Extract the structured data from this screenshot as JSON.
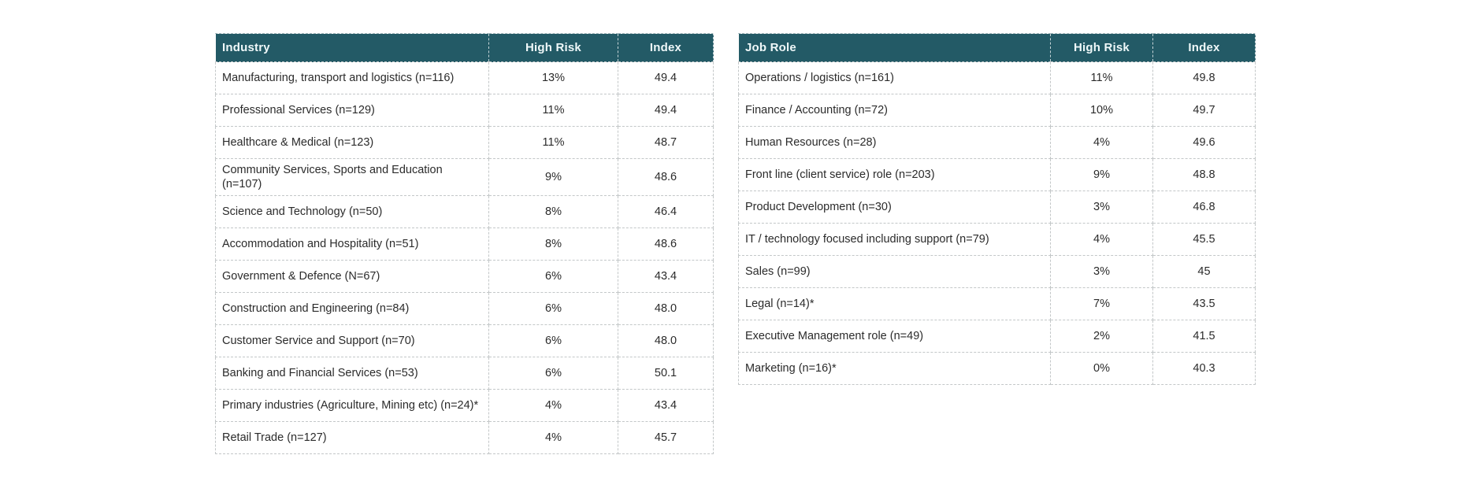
{
  "colors": {
    "header_bg": "#235A66",
    "header_text": "#EFF8F9",
    "border": "#c3c7c8",
    "body_text": "#2b2b2b",
    "page_bg": "#ffffff"
  },
  "chart_data": [
    {
      "type": "table",
      "title": "",
      "columns": [
        "Industry",
        "High Risk",
        "Index"
      ],
      "rows": [
        [
          "Manufacturing, transport and logistics (n=116)",
          "13%",
          "49.4"
        ],
        [
          "Professional Services (n=129)",
          "11%",
          "49.4"
        ],
        [
          "Healthcare & Medical (n=123)",
          "11%",
          "48.7"
        ],
        [
          "Community Services, Sports and Education (n=107)",
          "9%",
          "48.6"
        ],
        [
          "Science and Technology (n=50)",
          "8%",
          "46.4"
        ],
        [
          "Accommodation and Hospitality (n=51)",
          "8%",
          "48.6"
        ],
        [
          "Government & Defence (N=67)",
          "6%",
          "43.4"
        ],
        [
          "Construction and Engineering (n=84)",
          "6%",
          "48.0"
        ],
        [
          "Customer Service and Support (n=70)",
          "6%",
          "48.0"
        ],
        [
          "Banking and Financial Services (n=53)",
          "6%",
          "50.1"
        ],
        [
          "Primary industries (Agriculture, Mining etc) (n=24)*",
          "4%",
          "43.4"
        ],
        [
          "Retail Trade (n=127)",
          "4%",
          "45.7"
        ]
      ]
    },
    {
      "type": "table",
      "title": "",
      "columns": [
        "Job Role",
        "High Risk",
        "Index"
      ],
      "rows": [
        [
          "Operations / logistics (n=161)",
          "11%",
          "49.8"
        ],
        [
          "Finance / Accounting (n=72)",
          "10%",
          "49.7"
        ],
        [
          "Human Resources (n=28)",
          "4%",
          "49.6"
        ],
        [
          "Front line (client service) role (n=203)",
          "9%",
          "48.8"
        ],
        [
          "Product Development (n=30)",
          "3%",
          "46.8"
        ],
        [
          "IT / technology focused including support (n=79)",
          "4%",
          "45.5"
        ],
        [
          "Sales (n=99)",
          "3%",
          "45"
        ],
        [
          "Legal (n=14)*",
          "7%",
          "43.5"
        ],
        [
          "Executive Management role  (n=49)",
          "2%",
          "41.5"
        ],
        [
          "Marketing (n=16)*",
          "0%",
          "40.3"
        ]
      ]
    }
  ]
}
